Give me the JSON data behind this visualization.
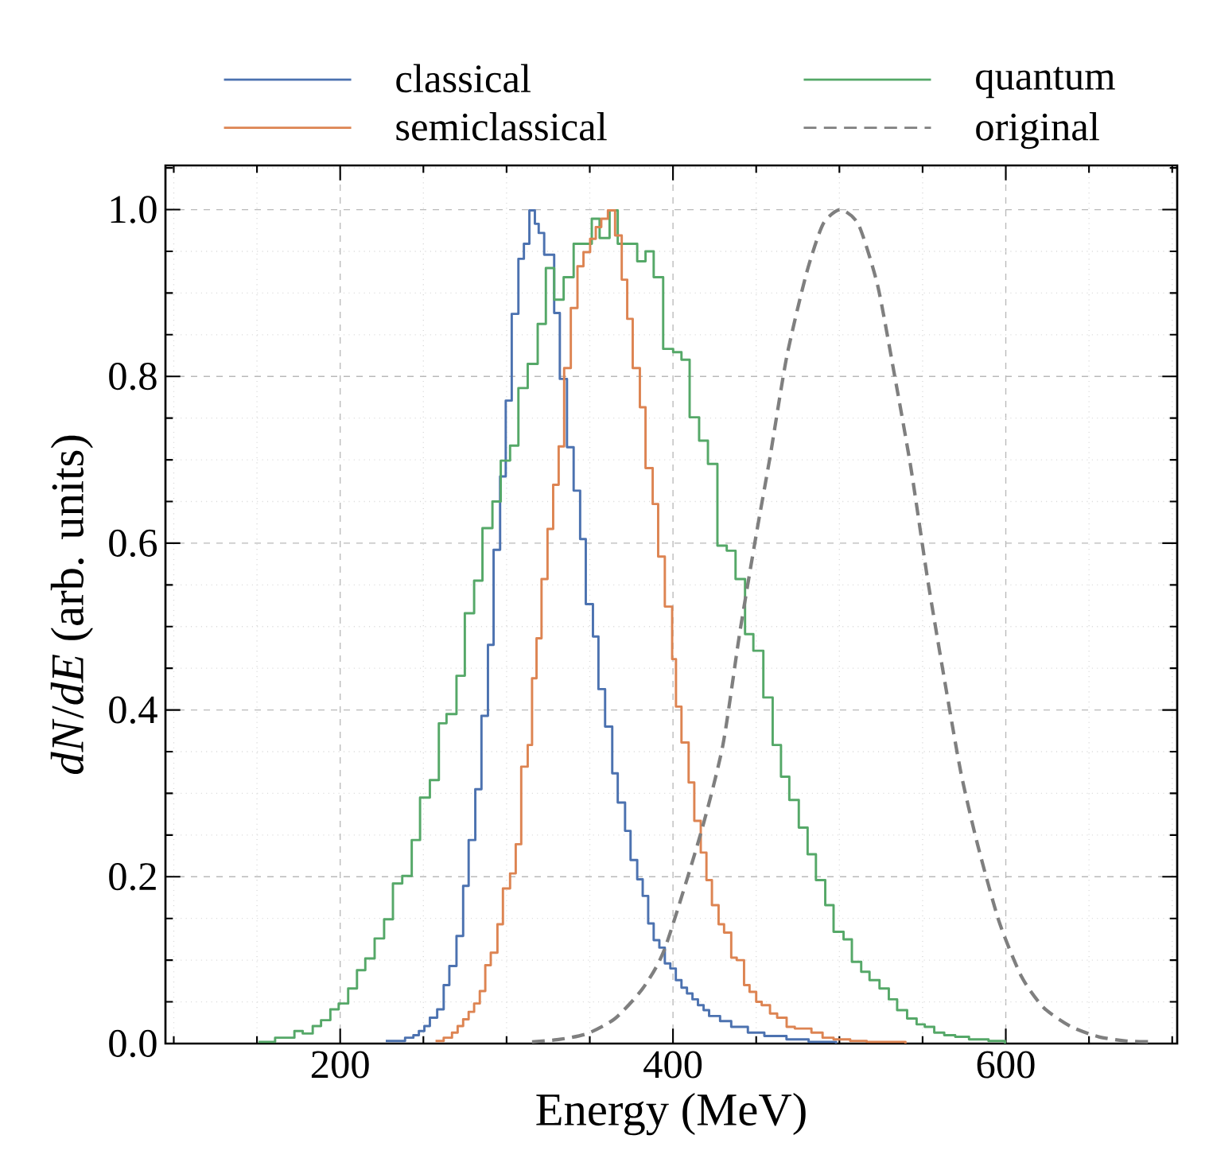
{
  "chart_data": {
    "type": "step",
    "xlabel": "Energy (MeV)",
    "ylabel": "*dN*/*dE* (arb. units)",
    "xlim": [
      95,
      703
    ],
    "ylim": [
      0,
      1.053
    ],
    "xticks": [
      {
        "value": 100,
        "label": null
      },
      {
        "value": 150,
        "label": null
      },
      200,
      {
        "value": 250,
        "label": null
      },
      {
        "value": 300,
        "label": null
      },
      {
        "value": 350,
        "label": null
      },
      400,
      {
        "value": 450,
        "label": null
      },
      {
        "value": 500,
        "label": null
      },
      {
        "value": 550,
        "label": null
      },
      600,
      {
        "value": 650,
        "label": null
      },
      {
        "value": 700,
        "label": null
      }
    ],
    "yticks": [
      {
        "value": 0,
        "label": "0.0"
      },
      {
        "value": 0.05,
        "label": null
      },
      {
        "value": 0.1,
        "label": null
      },
      {
        "value": 0.15,
        "label": null
      },
      {
        "value": 0.2,
        "label": "0.2"
      },
      {
        "value": 0.25,
        "label": null
      },
      {
        "value": 0.3,
        "label": null
      },
      {
        "value": 0.35,
        "label": null
      },
      {
        "value": 0.4,
        "label": "0.4"
      },
      {
        "value": 0.45,
        "label": null
      },
      {
        "value": 0.5,
        "label": null
      },
      {
        "value": 0.55,
        "label": null
      },
      {
        "value": 0.6,
        "label": "0.6"
      },
      {
        "value": 0.65,
        "label": null
      },
      {
        "value": 0.7,
        "label": null
      },
      {
        "value": 0.75,
        "label": null
      },
      {
        "value": 0.8,
        "label": "0.8"
      },
      {
        "value": 0.85,
        "label": null
      },
      {
        "value": 0.9,
        "label": null
      },
      {
        "value": 0.95,
        "label": null
      },
      {
        "value": 1.0,
        "label": "1.0"
      },
      {
        "value": 1.05,
        "label": null
      }
    ],
    "grid": true,
    "legend": "top",
    "marker": "none",
    "series": [
      {
        "name": "classical",
        "color": "#4c72b0",
        "x": [
          227.4,
          239.0,
          244.0,
          247.3,
          250.6,
          253.9,
          258.3,
          262.2,
          265.6,
          269.9,
          273.9,
          277.2,
          281.2,
          284.9,
          288.8,
          292.2,
          296.1,
          299.5,
          303.1,
          307.1,
          310.4,
          313.7,
          317.0,
          319.3,
          322.6,
          328.6,
          332.0,
          336.3,
          340.3,
          344.2,
          347.6,
          351.9,
          355.2,
          359.2,
          363.5,
          366.8,
          371.2,
          374.5,
          378.5,
          381.8,
          385.1,
          388.4,
          391.8,
          395.1,
          398.4,
          401.7,
          405.1,
          408.4,
          411.7,
          415.0,
          418.4,
          421.7,
          428.3,
          435.0,
          445.0,
          454.9,
          468.2,
          481.5,
          498.0
        ],
        "values": [
          0.003,
          0.007,
          0.01,
          0.015,
          0.021,
          0.031,
          0.041,
          0.07,
          0.093,
          0.129,
          0.189,
          0.244,
          0.305,
          0.393,
          0.478,
          0.592,
          0.68,
          0.771,
          0.875,
          0.941,
          0.959,
          0.999,
          0.983,
          0.972,
          0.946,
          0.876,
          0.797,
          0.715,
          0.663,
          0.605,
          0.527,
          0.488,
          0.425,
          0.38,
          0.324,
          0.289,
          0.255,
          0.22,
          0.197,
          0.177,
          0.144,
          0.124,
          0.115,
          0.096,
          0.09,
          0.076,
          0.067,
          0.06,
          0.053,
          0.046,
          0.04,
          0.033,
          0.027,
          0.02,
          0.013,
          0.009,
          0.005,
          0.002,
          0
        ]
      },
      {
        "name": "semiclassical",
        "color": "#dd8452",
        "x": [
          257.3,
          262.2,
          267.2,
          270.6,
          273.9,
          277.2,
          280.5,
          283.9,
          287.2,
          290.5,
          294.5,
          297.8,
          302.1,
          305.5,
          308.8,
          312.7,
          315.3,
          318.0,
          321.0,
          324.6,
          328.0,
          331.3,
          334.6,
          338.6,
          342.6,
          346.2,
          350.2,
          353.6,
          356.9,
          360.9,
          365.2,
          369.2,
          372.5,
          375.8,
          380.1,
          383.5,
          387.8,
          391.1,
          395.1,
          399.5,
          401.8,
          405.1,
          409.4,
          412.8,
          416.7,
          420.1,
          423.4,
          427.4,
          430.7,
          435.0,
          438.3,
          442.7,
          446.0,
          450.0,
          453.3,
          458.3,
          462.6,
          468.3,
          473.2,
          483.2,
          489.9,
          496.5,
          506.5,
          516.4,
          539.7
        ],
        "values": [
          0.003,
          0.007,
          0.013,
          0.021,
          0.029,
          0.038,
          0.048,
          0.063,
          0.094,
          0.109,
          0.143,
          0.186,
          0.204,
          0.239,
          0.332,
          0.358,
          0.438,
          0.486,
          0.557,
          0.617,
          0.67,
          0.716,
          0.81,
          0.882,
          0.932,
          0.949,
          0.965,
          0.979,
          0.989,
          0.999,
          0.969,
          0.916,
          0.869,
          0.81,
          0.763,
          0.69,
          0.647,
          0.584,
          0.524,
          0.461,
          0.404,
          0.361,
          0.313,
          0.267,
          0.229,
          0.196,
          0.166,
          0.143,
          0.133,
          0.103,
          0.1,
          0.07,
          0.062,
          0.05,
          0.046,
          0.036,
          0.031,
          0.02,
          0.018,
          0.013,
          0.007,
          0.005,
          0.003,
          0.002,
          0
        ]
      },
      {
        "name": "quantum",
        "color": "#55a868",
        "x": [
          150.9,
          160.9,
          172.5,
          177.5,
          183.5,
          188.5,
          194.1,
          199.1,
          204.8,
          210.1,
          215.1,
          220.7,
          226.4,
          231.7,
          237.3,
          243.0,
          248.0,
          253.9,
          259.3,
          263.9,
          269.9,
          274.9,
          280.5,
          285.5,
          291.5,
          296.5,
          302.1,
          307.1,
          312.7,
          318.7,
          323.6,
          328.6,
          334.3,
          340.3,
          351.2,
          355.9,
          361.9,
          366.8,
          378.5,
          383.5,
          388.4,
          394.1,
          400.1,
          405.1,
          410.0,
          415.7,
          421.0,
          426.7,
          432.3,
          437.6,
          443.3,
          448.3,
          454.3,
          459.9,
          464.9,
          469.9,
          475.6,
          480.9,
          485.9,
          491.5,
          496.5,
          502.5,
          507.5,
          513.1,
          518.1,
          524.1,
          529.7,
          534.7,
          540.7,
          546.4,
          551.3,
          557.0,
          563.0,
          569.6,
          577.9,
          589.6,
          599.5
        ],
        "values": [
          0.002,
          0.007,
          0.015,
          0.012,
          0.021,
          0.028,
          0.041,
          0.048,
          0.066,
          0.088,
          0.102,
          0.126,
          0.149,
          0.192,
          0.201,
          0.244,
          0.295,
          0.316,
          0.384,
          0.395,
          0.441,
          0.516,
          0.555,
          0.618,
          0.65,
          0.699,
          0.717,
          0.786,
          0.815,
          0.863,
          0.93,
          0.892,
          0.919,
          0.959,
          0.989,
          0.966,
          0.999,
          0.959,
          0.938,
          0.95,
          0.919,
          0.833,
          0.829,
          0.82,
          0.751,
          0.723,
          0.695,
          0.597,
          0.591,
          0.557,
          0.491,
          0.471,
          0.415,
          0.358,
          0.32,
          0.292,
          0.259,
          0.227,
          0.196,
          0.166,
          0.134,
          0.125,
          0.098,
          0.086,
          0.076,
          0.066,
          0.053,
          0.04,
          0.03,
          0.023,
          0.02,
          0.013,
          0.01,
          0.008,
          0.005,
          0.003,
          0
        ]
      },
      {
        "name": "original",
        "type": "line",
        "line_style": "dashed",
        "color": "#7f7f7f",
        "x": [
          315.3,
          332.0,
          348.6,
          365.2,
          381.8,
          395.1,
          416.7,
          430.0,
          440.0,
          450.0,
          458.3,
          468.3,
          480.0,
          490.0,
          500.5,
          511.5,
          523.0,
          533.0,
          543.0,
          553.0,
          563.0,
          573.0,
          583.0,
          596.0,
          609.5,
          622.8,
          639.4,
          656.0,
          672.6,
          689.0
        ],
        "values": [
          0.002,
          0.005,
          0.012,
          0.03,
          0.066,
          0.114,
          0.252,
          0.358,
          0.491,
          0.61,
          0.703,
          0.823,
          0.922,
          0.982,
          1.0,
          0.982,
          0.909,
          0.803,
          0.69,
          0.557,
          0.438,
          0.325,
          0.239,
          0.146,
          0.08,
          0.043,
          0.02,
          0.008,
          0.003,
          0.002
        ]
      }
    ]
  }
}
